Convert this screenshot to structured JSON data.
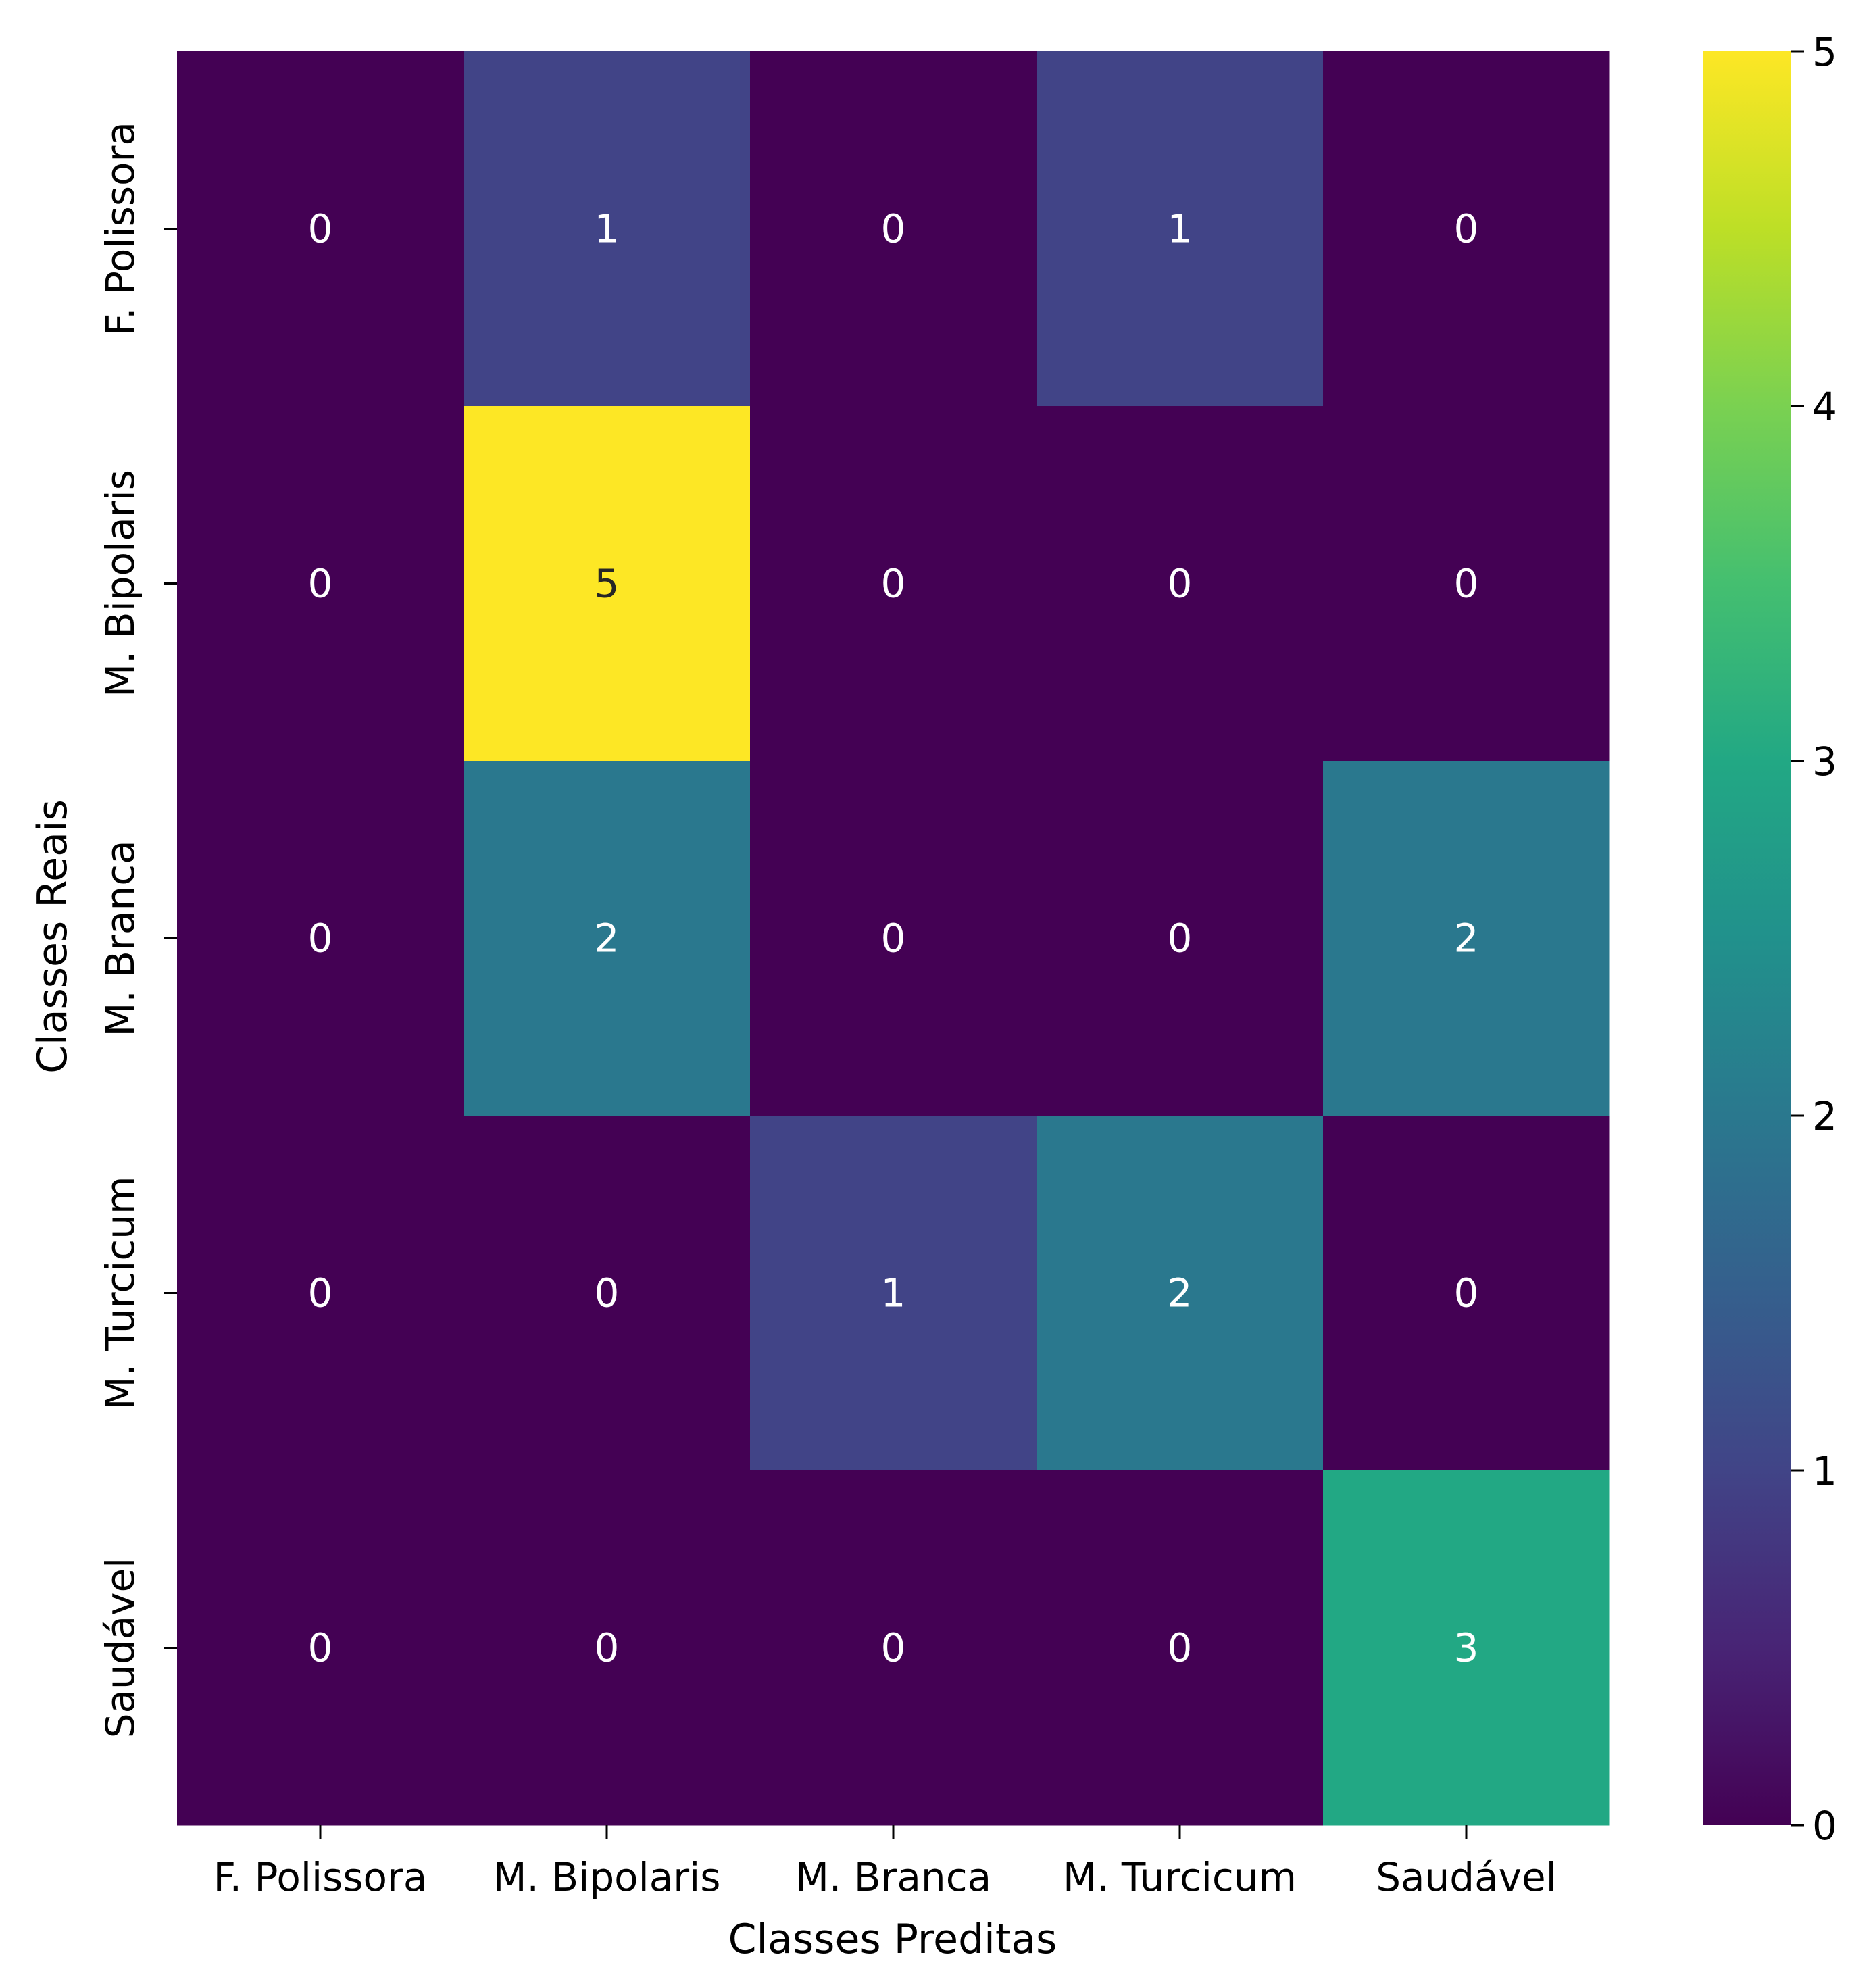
{
  "chart_data": {
    "type": "heatmap",
    "title": "",
    "xlabel": "Classes Preditas",
    "ylabel": "Classes Reais",
    "x_categories": [
      "F. Polissora",
      "M. Bipolaris",
      "M. Branca",
      "M. Turcicum",
      "Saudável"
    ],
    "y_categories": [
      "F. Polissora",
      "M. Bipolaris",
      "M. Branca",
      "M. Turcicum",
      "Saudável"
    ],
    "values": [
      [
        0,
        1,
        0,
        1,
        0
      ],
      [
        0,
        5,
        0,
        0,
        0
      ],
      [
        0,
        2,
        0,
        0,
        2
      ],
      [
        0,
        0,
        1,
        2,
        0
      ],
      [
        0,
        0,
        0,
        0,
        3
      ]
    ],
    "colormap": "viridis",
    "colorbar": {
      "min": 0,
      "max": 5,
      "ticks": [
        "0",
        "1",
        "2",
        "3",
        "4",
        "5"
      ]
    },
    "colors": {
      "0": "#440154",
      "1": "#414487",
      "2": "#2a788e",
      "3": "#22a884",
      "4": "#7ad151",
      "5": "#fde725"
    }
  }
}
